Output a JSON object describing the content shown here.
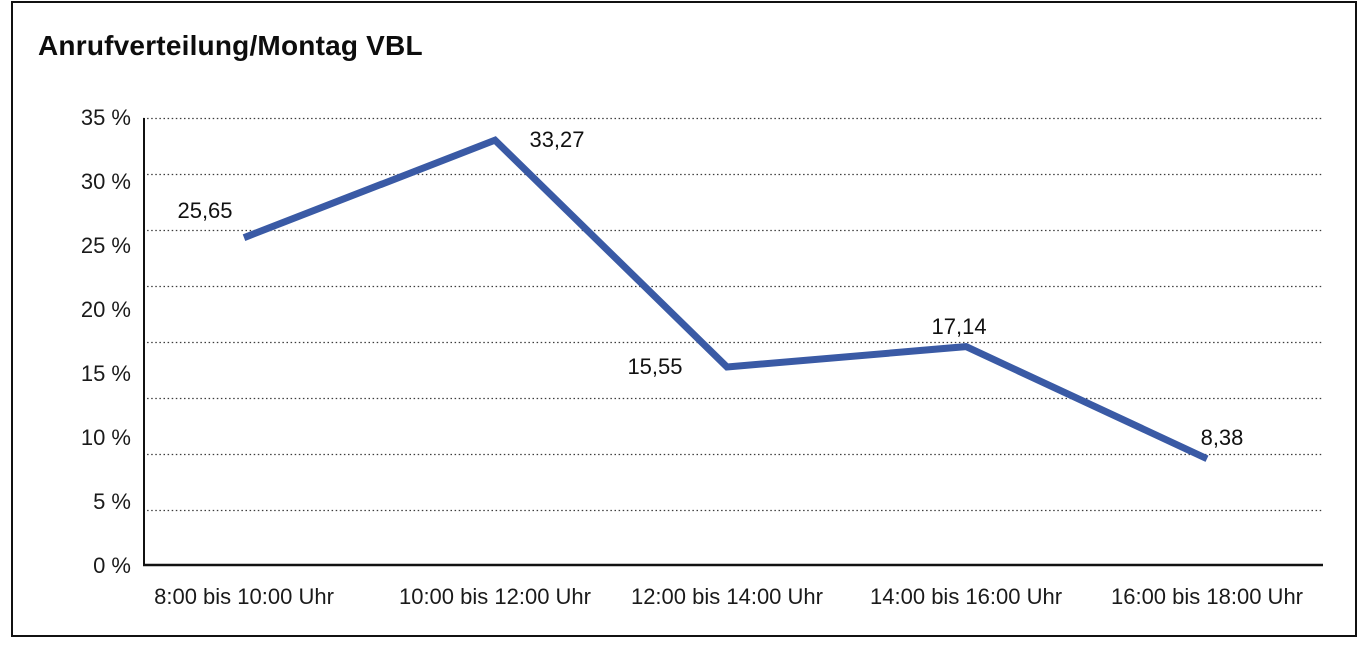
{
  "title": "Anrufverteilung/Montag VBL",
  "colors": {
    "line": "#3A5AA5",
    "text": "#1a1a1a",
    "grid": "#3c3c3c",
    "axis": "#111111",
    "frame": "#111111",
    "background": "#ffffff"
  },
  "chart_data": {
    "type": "line",
    "title": "Anrufverteilung/Montag VBL",
    "categories": [
      "8:00 bis 10:00 Uhr",
      "10:00 bis 12:00 Uhr",
      "12:00 bis 14:00 Uhr",
      "14:00 bis 16:00 Uhr",
      "16:00 bis 18:00 Uhr"
    ],
    "values": [
      25.65,
      33.27,
      15.55,
      17.14,
      8.38
    ],
    "point_labels": [
      "25,65",
      "33,27",
      "15,55",
      "17,14",
      "8,38"
    ],
    "ytick_labels": [
      "35 %",
      "30 %",
      "25 %",
      "20 %",
      "15 %",
      "10 %",
      "5 %",
      "0 %"
    ],
    "yticks": [
      35,
      30,
      25,
      20,
      15,
      10,
      5,
      0
    ],
    "ylim": [
      0,
      35
    ],
    "xlabel": "",
    "ylabel": "",
    "grid": true,
    "grid_style": "dotted",
    "grid_intervals": 8,
    "legend": false
  }
}
